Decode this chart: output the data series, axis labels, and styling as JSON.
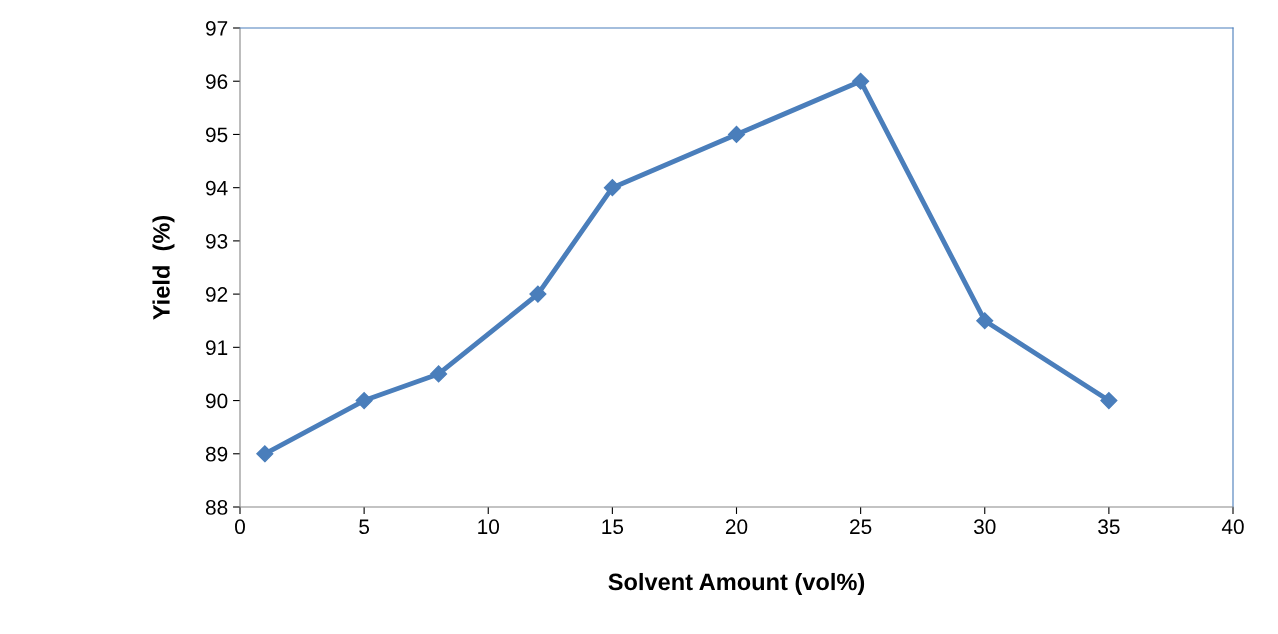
{
  "chart_data": {
    "type": "line",
    "xlabel": "Solvent Amount (vol%)",
    "ylabel": "Yield  (%)",
    "x": [
      1,
      5,
      8,
      12,
      15,
      20,
      25,
      30,
      35
    ],
    "series": [
      {
        "color": "#4a7ebb",
        "values": [
          89,
          90,
          90.5,
          92,
          94,
          95,
          96,
          91.5,
          90
        ]
      }
    ],
    "xlim": [
      0,
      40
    ],
    "xticks": [
      0,
      5,
      10,
      15,
      20,
      25,
      30,
      35,
      40
    ],
    "ylim": [
      88,
      97
    ],
    "yticks": [
      88,
      89,
      90,
      91,
      92,
      93,
      94,
      95,
      96,
      97
    ],
    "marker": "diamond",
    "line_style": "solid",
    "grid": false,
    "legend": false
  }
}
